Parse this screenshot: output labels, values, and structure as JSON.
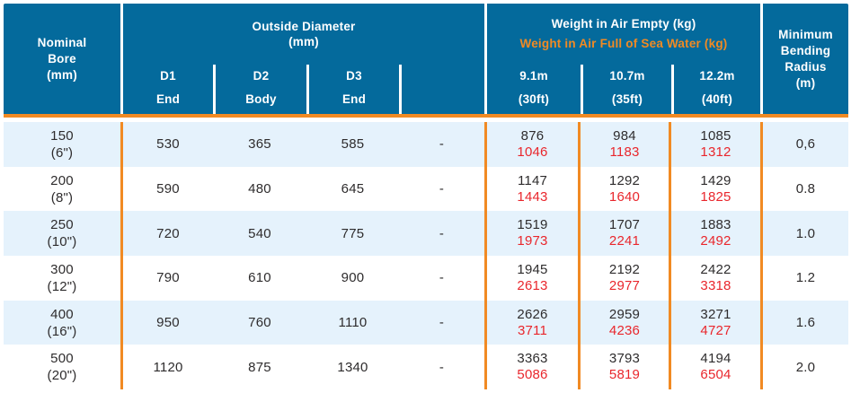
{
  "colors": {
    "header_bg": "#046a9c",
    "accent_orange": "#f18a23",
    "value_red": "#e9262c",
    "row_alt_blue": "#e5f2fc",
    "body_text": "#2e2c2d"
  },
  "header": {
    "nominal_bore": "Nominal\nBore\n(mm)",
    "outside_diameter_title": "Outside Diameter\n(mm)",
    "weight_empty": "Weight in Air Empty (kg)",
    "weight_full": "Weight in Air Full of Sea Water (kg)",
    "min_bending": "Minimum\nBending\nRadius\n(m)",
    "d1": {
      "label": "D1",
      "sub": "End"
    },
    "d2": {
      "label": "D2",
      "sub": "Body"
    },
    "d3": {
      "label": "D3",
      "sub": "End"
    },
    "len1": {
      "label": "9.1m",
      "sub": "(30ft)"
    },
    "len2": {
      "label": "10.7m",
      "sub": "(35ft)"
    },
    "len3": {
      "label": "12.2m",
      "sub": "(40ft)"
    }
  },
  "table": {
    "rows": [
      {
        "bore": "150\n(6\")",
        "d1": "530",
        "d2": "365",
        "d3": "585",
        "dash": "-",
        "weights": {
          "m91": {
            "empty": "876",
            "full": "1046"
          },
          "m107": {
            "empty": "984",
            "full": "1183"
          },
          "m122": {
            "empty": "1085",
            "full": "1312"
          }
        },
        "radius": "0,6"
      },
      {
        "bore": "200\n(8\")",
        "d1": "590",
        "d2": "480",
        "d3": "645",
        "dash": "-",
        "weights": {
          "m91": {
            "empty": "1147",
            "full": "1443"
          },
          "m107": {
            "empty": "1292",
            "full": "1640"
          },
          "m122": {
            "empty": "1429",
            "full": "1825"
          }
        },
        "radius": "0.8"
      },
      {
        "bore": "250\n(10\")",
        "d1": "720",
        "d2": "540",
        "d3": "775",
        "dash": "-",
        "weights": {
          "m91": {
            "empty": "1519",
            "full": "1973"
          },
          "m107": {
            "empty": "1707",
            "full": "2241"
          },
          "m122": {
            "empty": "1883",
            "full": "2492"
          }
        },
        "radius": "1.0"
      },
      {
        "bore": "300\n(12\")",
        "d1": "790",
        "d2": "610",
        "d3": "900",
        "dash": "-",
        "weights": {
          "m91": {
            "empty": "1945",
            "full": "2613"
          },
          "m107": {
            "empty": "2192",
            "full": "2977"
          },
          "m122": {
            "empty": "2422",
            "full": "3318"
          }
        },
        "radius": "1.2"
      },
      {
        "bore": "400\n(16\")",
        "d1": "950",
        "d2": "760",
        "d3": "1110",
        "dash": "-",
        "weights": {
          "m91": {
            "empty": "2626",
            "full": "3711"
          },
          "m107": {
            "empty": "2959",
            "full": "4236"
          },
          "m122": {
            "empty": "3271",
            "full": "4727"
          }
        },
        "radius": "1.6"
      },
      {
        "bore": "500\n(20\")",
        "d1": "1120",
        "d2": "875",
        "d3": "1340",
        "dash": "-",
        "weights": {
          "m91": {
            "empty": "3363",
            "full": "5086"
          },
          "m107": {
            "empty": "3793",
            "full": "5819"
          },
          "m122": {
            "empty": "4194",
            "full": "6504"
          }
        },
        "radius": "2.0"
      }
    ]
  }
}
